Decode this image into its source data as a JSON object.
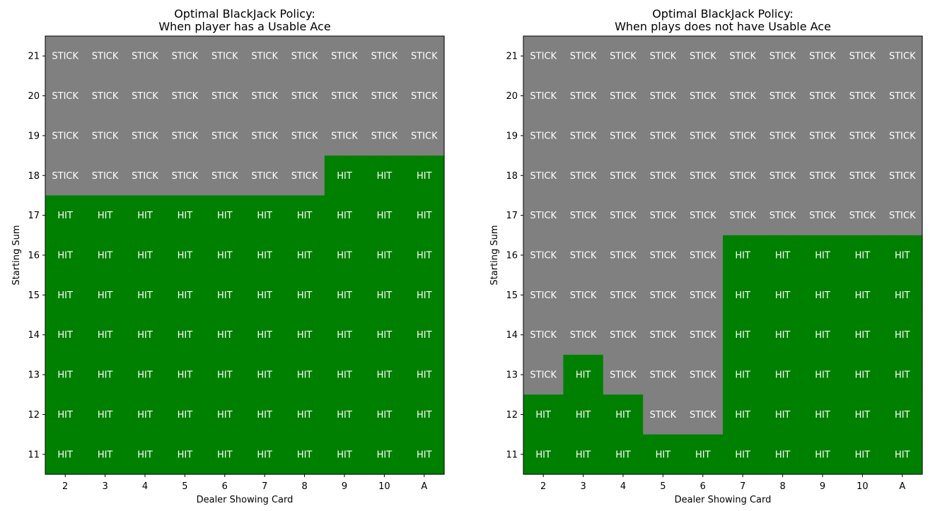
{
  "chart_data": [
    {
      "type": "heatmap",
      "title_line1": "Optimal BlackJack Policy:",
      "title_line2": "When player has a Usable Ace",
      "xlabel": "Dealer Showing Card",
      "ylabel": "Starting Sum",
      "x_categories": [
        "2",
        "3",
        "4",
        "5",
        "6",
        "7",
        "8",
        "9",
        "10",
        "A"
      ],
      "y_categories": [
        "21",
        "20",
        "19",
        "18",
        "17",
        "16",
        "15",
        "14",
        "13",
        "12",
        "11"
      ],
      "actions": [
        "STICK",
        "HIT"
      ],
      "colors": {
        "STICK": "#808080",
        "HIT": "#008000"
      },
      "values": [
        [
          "STICK",
          "STICK",
          "STICK",
          "STICK",
          "STICK",
          "STICK",
          "STICK",
          "STICK",
          "STICK",
          "STICK"
        ],
        [
          "STICK",
          "STICK",
          "STICK",
          "STICK",
          "STICK",
          "STICK",
          "STICK",
          "STICK",
          "STICK",
          "STICK"
        ],
        [
          "STICK",
          "STICK",
          "STICK",
          "STICK",
          "STICK",
          "STICK",
          "STICK",
          "STICK",
          "STICK",
          "STICK"
        ],
        [
          "STICK",
          "STICK",
          "STICK",
          "STICK",
          "STICK",
          "STICK",
          "STICK",
          "HIT",
          "HIT",
          "HIT"
        ],
        [
          "HIT",
          "HIT",
          "HIT",
          "HIT",
          "HIT",
          "HIT",
          "HIT",
          "HIT",
          "HIT",
          "HIT"
        ],
        [
          "HIT",
          "HIT",
          "HIT",
          "HIT",
          "HIT",
          "HIT",
          "HIT",
          "HIT",
          "HIT",
          "HIT"
        ],
        [
          "HIT",
          "HIT",
          "HIT",
          "HIT",
          "HIT",
          "HIT",
          "HIT",
          "HIT",
          "HIT",
          "HIT"
        ],
        [
          "HIT",
          "HIT",
          "HIT",
          "HIT",
          "HIT",
          "HIT",
          "HIT",
          "HIT",
          "HIT",
          "HIT"
        ],
        [
          "HIT",
          "HIT",
          "HIT",
          "HIT",
          "HIT",
          "HIT",
          "HIT",
          "HIT",
          "HIT",
          "HIT"
        ],
        [
          "HIT",
          "HIT",
          "HIT",
          "HIT",
          "HIT",
          "HIT",
          "HIT",
          "HIT",
          "HIT",
          "HIT"
        ],
        [
          "HIT",
          "HIT",
          "HIT",
          "HIT",
          "HIT",
          "HIT",
          "HIT",
          "HIT",
          "HIT",
          "HIT"
        ]
      ]
    },
    {
      "type": "heatmap",
      "title_line1": "Optimal BlackJack Policy:",
      "title_line2": "When plays does not have Usable Ace",
      "xlabel": "Dealer Showing Card",
      "ylabel": "Starting Sum",
      "x_categories": [
        "2",
        "3",
        "4",
        "5",
        "6",
        "7",
        "8",
        "9",
        "10",
        "A"
      ],
      "y_categories": [
        "21",
        "20",
        "19",
        "18",
        "17",
        "16",
        "15",
        "14",
        "13",
        "12",
        "11"
      ],
      "actions": [
        "STICK",
        "HIT"
      ],
      "colors": {
        "STICK": "#808080",
        "HIT": "#008000"
      },
      "values": [
        [
          "STICK",
          "STICK",
          "STICK",
          "STICK",
          "STICK",
          "STICK",
          "STICK",
          "STICK",
          "STICK",
          "STICK"
        ],
        [
          "STICK",
          "STICK",
          "STICK",
          "STICK",
          "STICK",
          "STICK",
          "STICK",
          "STICK",
          "STICK",
          "STICK"
        ],
        [
          "STICK",
          "STICK",
          "STICK",
          "STICK",
          "STICK",
          "STICK",
          "STICK",
          "STICK",
          "STICK",
          "STICK"
        ],
        [
          "STICK",
          "STICK",
          "STICK",
          "STICK",
          "STICK",
          "STICK",
          "STICK",
          "STICK",
          "STICK",
          "STICK"
        ],
        [
          "STICK",
          "STICK",
          "STICK",
          "STICK",
          "STICK",
          "STICK",
          "STICK",
          "STICK",
          "STICK",
          "STICK"
        ],
        [
          "STICK",
          "STICK",
          "STICK",
          "STICK",
          "STICK",
          "HIT",
          "HIT",
          "HIT",
          "HIT",
          "HIT"
        ],
        [
          "STICK",
          "STICK",
          "STICK",
          "STICK",
          "STICK",
          "HIT",
          "HIT",
          "HIT",
          "HIT",
          "HIT"
        ],
        [
          "STICK",
          "STICK",
          "STICK",
          "STICK",
          "STICK",
          "HIT",
          "HIT",
          "HIT",
          "HIT",
          "HIT"
        ],
        [
          "STICK",
          "HIT",
          "STICK",
          "STICK",
          "STICK",
          "HIT",
          "HIT",
          "HIT",
          "HIT",
          "HIT"
        ],
        [
          "HIT",
          "HIT",
          "HIT",
          "STICK",
          "STICK",
          "HIT",
          "HIT",
          "HIT",
          "HIT",
          "HIT"
        ],
        [
          "HIT",
          "HIT",
          "HIT",
          "HIT",
          "HIT",
          "HIT",
          "HIT",
          "HIT",
          "HIT",
          "HIT"
        ]
      ]
    }
  ]
}
